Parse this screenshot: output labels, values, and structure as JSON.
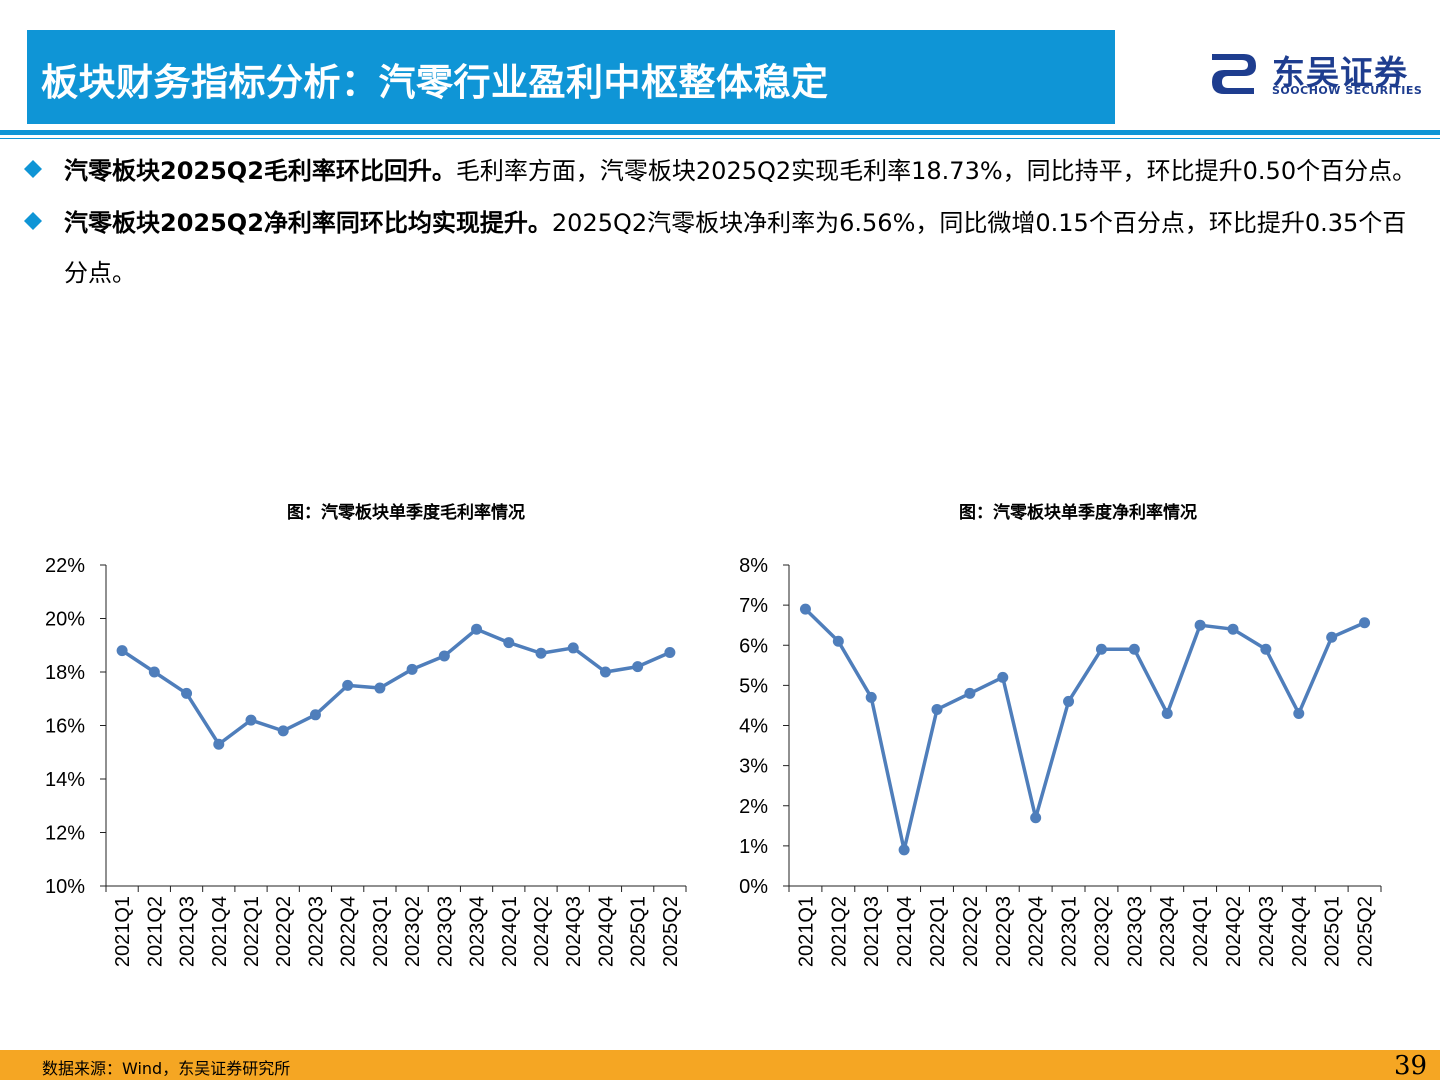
{
  "header": {
    "title": "板块财务指标分析：汽零行业盈利中枢整体稳定",
    "logo_cn": "东吴证券",
    "logo_en": "SOOCHOW SECURITIES"
  },
  "bullets": [
    {
      "head": "汽零板块2025Q2毛利率环比回升。",
      "body": "毛利率方面，汽零板块2025Q2实现毛利率18.73%，同比持平，环比提升0.50个百分点。"
    },
    {
      "head": "汽零板块2025Q2净利率同环比均实现提升。",
      "body": "2025Q2汽零板块净利率为6.56%，同比微增0.15个百分点，环比提升0.35个百分点。"
    }
  ],
  "chart_data": [
    {
      "type": "line",
      "title": "图：汽零板块单季度毛利率情况",
      "categories": [
        "2021Q1",
        "2021Q2",
        "2021Q3",
        "2021Q4",
        "2022Q1",
        "2022Q2",
        "2022Q3",
        "2022Q4",
        "2023Q1",
        "2023Q2",
        "2023Q3",
        "2023Q4",
        "2024Q1",
        "2024Q2",
        "2024Q3",
        "2024Q4",
        "2025Q1",
        "2025Q2"
      ],
      "values": [
        18.8,
        18.0,
        17.2,
        15.3,
        16.2,
        15.8,
        16.4,
        17.5,
        17.4,
        18.1,
        18.6,
        19.6,
        19.1,
        18.7,
        18.9,
        18.0,
        18.2,
        18.73
      ],
      "ylim": [
        10,
        22
      ],
      "yticks": [
        "10%",
        "12%",
        "14%",
        "16%",
        "18%",
        "20%",
        "22%"
      ],
      "ytick_values": [
        10,
        12,
        14,
        16,
        18,
        20,
        22
      ],
      "color": "#4f7ebb"
    },
    {
      "type": "line",
      "title": "图：汽零板块单季度净利率情况",
      "categories": [
        "2021Q1",
        "2021Q2",
        "2021Q3",
        "2021Q4",
        "2022Q1",
        "2022Q2",
        "2022Q3",
        "2022Q4",
        "2023Q1",
        "2023Q2",
        "2023Q3",
        "2023Q4",
        "2024Q1",
        "2024Q2",
        "2024Q3",
        "2024Q4",
        "2025Q1",
        "2025Q2"
      ],
      "values": [
        6.9,
        6.1,
        4.7,
        0.9,
        4.4,
        4.8,
        5.2,
        1.7,
        4.6,
        5.9,
        5.9,
        4.3,
        6.5,
        6.4,
        5.9,
        4.3,
        6.2,
        6.56
      ],
      "ylim": [
        0,
        8
      ],
      "yticks": [
        "0%",
        "1%",
        "2%",
        "3%",
        "4%",
        "5%",
        "6%",
        "7%",
        "8%"
      ],
      "ytick_values": [
        0,
        1,
        2,
        3,
        4,
        5,
        6,
        7,
        8
      ],
      "color": "#4f7ebb"
    }
  ],
  "footer": {
    "source": "数据来源：Wind，东吴证券研究所",
    "page": "39"
  }
}
